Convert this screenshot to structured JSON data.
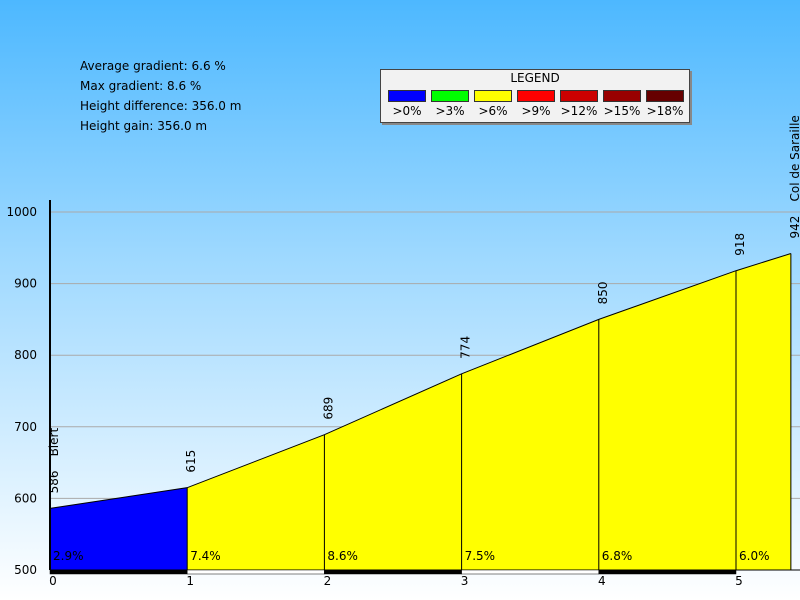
{
  "stats": {
    "average_gradient": "Average gradient: 6.6 %",
    "max_gradient": "Max gradient: 8.6 %",
    "height_difference": "Height difference: 356.0 m",
    "height_gain": "Height gain: 356.0 m"
  },
  "legend": {
    "title": "LEGEND",
    "items": [
      {
        "label": ">0%",
        "color": "#0000ff"
      },
      {
        "label": ">3%",
        "color": "#00ff00"
      },
      {
        "label": ">6%",
        "color": "#ffff00"
      },
      {
        "label": ">9%",
        "color": "#ff0000"
      },
      {
        "label": ">12%",
        "color": "#cc0000"
      },
      {
        "label": ">15%",
        "color": "#990000"
      },
      {
        "label": ">18%",
        "color": "#660000"
      }
    ]
  },
  "chart_data": {
    "type": "area",
    "title": "",
    "xlabel": "",
    "ylabel": "",
    "xlim": [
      0,
      5.43
    ],
    "ylim": [
      500,
      1000
    ],
    "y_ticks": [
      500,
      600,
      700,
      800,
      900,
      1000
    ],
    "x_ticks": [
      0,
      1,
      2,
      3,
      4,
      5
    ],
    "grid": true,
    "x": [
      0,
      1,
      2,
      3,
      4,
      5,
      5.4
    ],
    "elevation": [
      586,
      615,
      689,
      774,
      850,
      918,
      942
    ],
    "elevation_labels": [
      "586",
      "615",
      "689",
      "774",
      "850",
      "918",
      "942"
    ],
    "segments": [
      {
        "from": 0,
        "to": 1,
        "gradient": "2.9%",
        "color": "#0000ff"
      },
      {
        "from": 1,
        "to": 2,
        "gradient": "7.4%",
        "color": "#ffff00"
      },
      {
        "from": 2,
        "to": 3,
        "gradient": "8.6%",
        "color": "#ffff00"
      },
      {
        "from": 3,
        "to": 4,
        "gradient": "7.5%",
        "color": "#ffff00"
      },
      {
        "from": 4,
        "to": 5,
        "gradient": "6.8%",
        "color": "#ffff00"
      },
      {
        "from": 5,
        "to": 5.4,
        "gradient": "6.0%",
        "color": "#ffff00"
      }
    ],
    "places": [
      {
        "x": 0,
        "name": "Biert"
      },
      {
        "x": 5.4,
        "name": "Col de Saraille"
      }
    ]
  }
}
